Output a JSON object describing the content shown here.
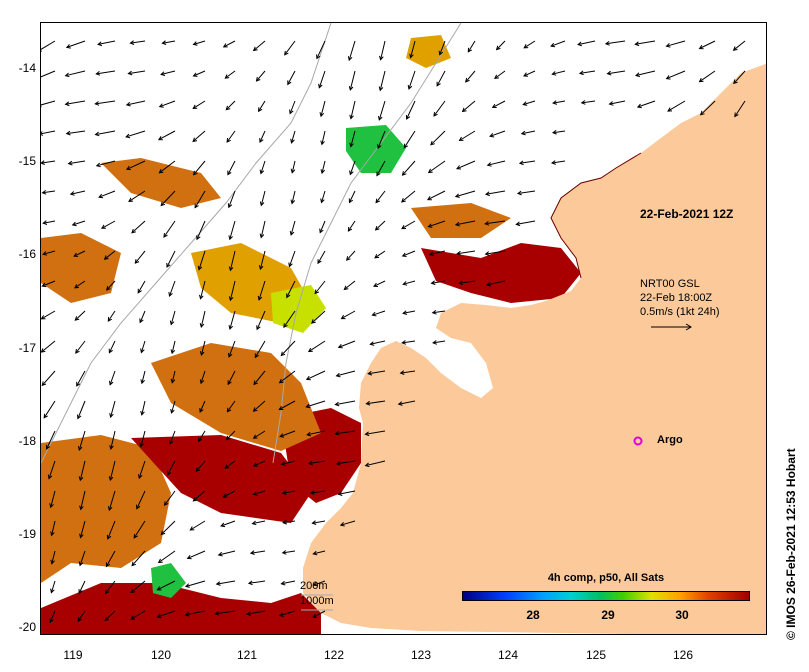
{
  "y_ticks": [
    "-14",
    "-15",
    "-16",
    "-17",
    "-18",
    "-19",
    "-20"
  ],
  "x_ticks": [
    "119",
    "120",
    "121",
    "122",
    "123",
    "124",
    "125",
    "126"
  ],
  "colors": {
    "land": "#fbc99a",
    "sst_hot": "#a80000",
    "sst_warm": "#d07010",
    "sst_mid": "#e0a000",
    "sst_cool": "#c8e000",
    "sst_green": "#20c040"
  },
  "overlay": {
    "date": "22-Feb-2021 12Z",
    "current_source": "NRT00 GSL",
    "current_time": "22-Feb 18:00Z",
    "current_scale": "0.5m/s (1kt 24h)",
    "argo_label": "Argo",
    "depth_200": "200m",
    "depth_1000": "1000m"
  },
  "colorbar": {
    "title": "4h comp, p50, All Sats",
    "ticks": [
      "28",
      "29",
      "30"
    ]
  },
  "credit": "© IMOS 26-Feb-2021 12:53 Hobart"
}
